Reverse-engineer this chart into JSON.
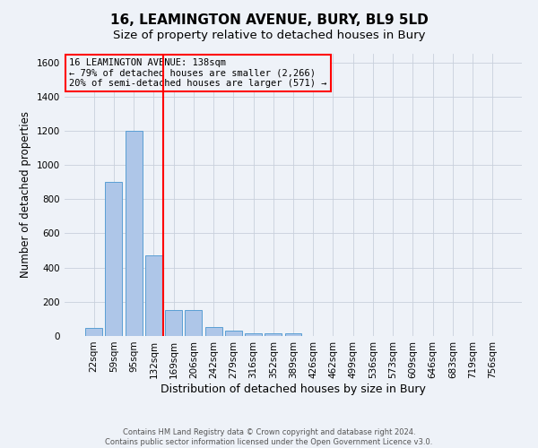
{
  "title_line1": "16, LEAMINGTON AVENUE, BURY, BL9 5LD",
  "title_line2": "Size of property relative to detached houses in Bury",
  "xlabel": "Distribution of detached houses by size in Bury",
  "ylabel": "Number of detached properties",
  "bar_labels": [
    "22sqm",
    "59sqm",
    "95sqm",
    "132sqm",
    "169sqm",
    "206sqm",
    "242sqm",
    "279sqm",
    "316sqm",
    "352sqm",
    "389sqm",
    "426sqm",
    "462sqm",
    "499sqm",
    "536sqm",
    "573sqm",
    "609sqm",
    "646sqm",
    "683sqm",
    "719sqm",
    "756sqm"
  ],
  "bar_values": [
    45,
    900,
    1200,
    470,
    150,
    150,
    55,
    30,
    18,
    15,
    18,
    0,
    0,
    0,
    0,
    0,
    0,
    0,
    0,
    0,
    0
  ],
  "bar_color": "#aec6e8",
  "bar_edgecolor": "#5a9fd4",
  "vline_x": 3.5,
  "vline_color": "red",
  "annotation_text": "16 LEAMINGTON AVENUE: 138sqm\n← 79% of detached houses are smaller (2,266)\n20% of semi-detached houses are larger (571) →",
  "annotation_box_color": "red",
  "ylim": [
    0,
    1650
  ],
  "yticks": [
    0,
    200,
    400,
    600,
    800,
    1000,
    1200,
    1400,
    1600
  ],
  "grid_color": "#c8d0dc",
  "background_color": "#eef2f8",
  "footer_text": "Contains HM Land Registry data © Crown copyright and database right 2024.\nContains public sector information licensed under the Open Government Licence v3.0.",
  "title_fontsize": 11,
  "subtitle_fontsize": 9.5,
  "xlabel_fontsize": 9,
  "ylabel_fontsize": 8.5,
  "tick_fontsize": 7.5,
  "annotation_fontsize": 7.5,
  "footer_fontsize": 6
}
